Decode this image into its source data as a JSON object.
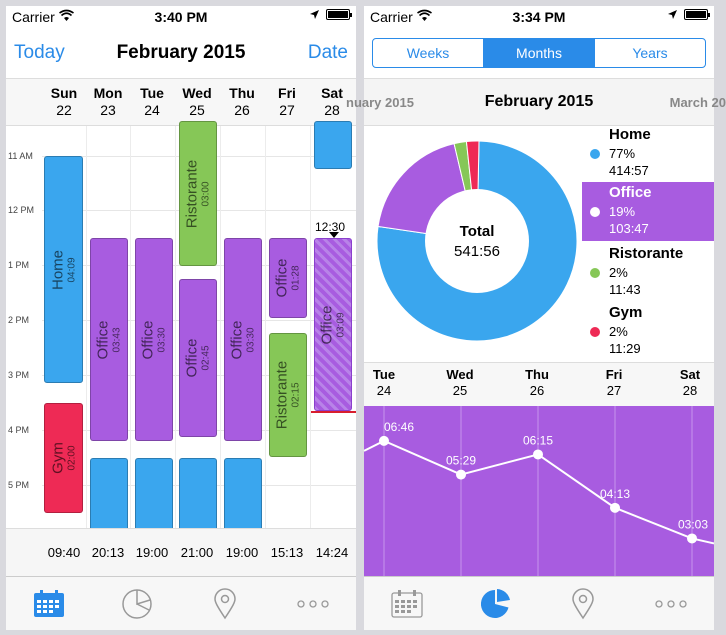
{
  "status": {
    "carrier": "Carrier"
  },
  "screen1": {
    "time": "3:40 PM",
    "nav": {
      "left": "Today",
      "title": "February 2015",
      "right": "Date"
    },
    "days": [
      {
        "name": "Sun",
        "num": "22"
      },
      {
        "name": "Mon",
        "num": "23"
      },
      {
        "name": "Tue",
        "num": "24"
      },
      {
        "name": "Wed",
        "num": "25"
      },
      {
        "name": "Thu",
        "num": "26"
      },
      {
        "name": "Fri",
        "num": "27"
      },
      {
        "name": "Sat",
        "num": "28"
      }
    ],
    "hours": [
      "11 AM",
      "12 PM",
      "1 PM",
      "2 PM",
      "3 PM",
      "4 PM",
      "5 PM"
    ],
    "events": [
      {
        "name": "Home",
        "duration": "04:09"
      },
      {
        "name": "Gym",
        "duration": "02:00"
      },
      {
        "name": "Office",
        "duration": "03:43"
      },
      {
        "name": "Office",
        "duration": "03:30"
      },
      {
        "name": "Ristorante",
        "duration": "03:00"
      },
      {
        "name": "Office",
        "duration": "02:45"
      },
      {
        "name": "Office",
        "duration": "03:30"
      },
      {
        "name": "Office",
        "duration": "01:28"
      },
      {
        "name": "Ristorante",
        "duration": "02:15"
      },
      {
        "name": "Office",
        "duration": "03:09"
      }
    ],
    "now_label": "12:30",
    "totals": [
      "09:40",
      "20:13",
      "19:00",
      "21:00",
      "19:00",
      "15:13",
      "14:24"
    ],
    "tabs": [
      "calendar-icon",
      "pie-chart-icon",
      "location-icon",
      "more-icon"
    ]
  },
  "screen2": {
    "time": "3:34 PM",
    "segments": [
      "Weeks",
      "Months",
      "Years"
    ],
    "active_segment": "Months",
    "months": {
      "prev": "nuary 2015",
      "current": "February 2015",
      "next": "March 20"
    },
    "donut": {
      "center_label": "Total",
      "center_value": "541:56"
    },
    "legend": [
      {
        "name": "Home",
        "percent": "77%",
        "time": "414:57",
        "color": "#3aa6ee"
      },
      {
        "name": "Office",
        "percent": "19%",
        "time": "103:47",
        "color": "#a85ce0"
      },
      {
        "name": "Ristorante",
        "percent": "2%",
        "time": "11:43",
        "color": "#86c757"
      },
      {
        "name": "Gym",
        "percent": "2%",
        "time": "11:29",
        "color": "#ee2a55"
      }
    ],
    "week_days": [
      {
        "name": "Tue",
        "num": "24"
      },
      {
        "name": "Wed",
        "num": "25"
      },
      {
        "name": "Thu",
        "num": "26"
      },
      {
        "name": "Fri",
        "num": "27"
      },
      {
        "name": "Sat",
        "num": "28"
      }
    ],
    "chart_data": {
      "type": "line",
      "categories": [
        "Tue 24",
        "Wed 25",
        "Thu 26",
        "Fri 27",
        "Sat 28"
      ],
      "series": [
        {
          "values": [
            "06:46",
            "05:29",
            "06:15",
            "04:13",
            "03:03"
          ]
        }
      ],
      "value_minutes": [
        406,
        329,
        375,
        253,
        183
      ]
    },
    "pie": {
      "type": "pie",
      "labels": [
        "Home",
        "Office",
        "Ristorante",
        "Gym"
      ],
      "values": [
        77,
        19,
        2,
        2
      ]
    },
    "tabs": [
      "calendar-icon",
      "pie-chart-icon",
      "location-icon",
      "more-icon"
    ]
  }
}
